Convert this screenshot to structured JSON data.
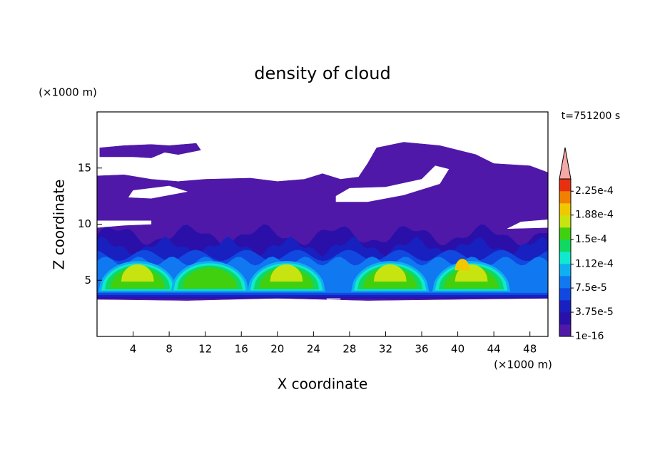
{
  "chart_data": {
    "type": "contour",
    "title": "density of cloud",
    "xlabel": "X coordinate",
    "ylabel": "Z coordinate",
    "xunit": "(×1000 m)",
    "yunit": "(×1000 m)",
    "time_label": "t=751200 s",
    "xlim": [
      0,
      50
    ],
    "xticks": [
      4,
      8,
      12,
      16,
      20,
      24,
      28,
      32,
      36,
      40,
      44,
      48
    ],
    "ylim": [
      0,
      20
    ],
    "yticks": [
      5,
      10,
      15
    ],
    "colorbar": {
      "clim": [
        1e-16,
        0.000244
      ],
      "ticks": [
        {
          "value": 1e-16,
          "label": "1e-16"
        },
        {
          "value": 3.75e-05,
          "label": "3.75e-5"
        },
        {
          "value": 7.5e-05,
          "label": "7.5e-5"
        },
        {
          "value": 0.000112,
          "label": "1.12e-4"
        },
        {
          "value": 0.00015,
          "label": "1.5e-4"
        },
        {
          "value": 0.000188,
          "label": "1.88e-4"
        },
        {
          "value": 0.000225,
          "label": "2.25e-4"
        }
      ],
      "colors": [
        "#5018a8",
        "#2a10a8",
        "#1820c0",
        "#1048e0",
        "#1078f0",
        "#10b0f0",
        "#10e8d0",
        "#10d860",
        "#40d010",
        "#c8e410",
        "#f0c800",
        "#f08000",
        "#e83010"
      ],
      "extend_color": "#f4a8a8"
    }
  }
}
